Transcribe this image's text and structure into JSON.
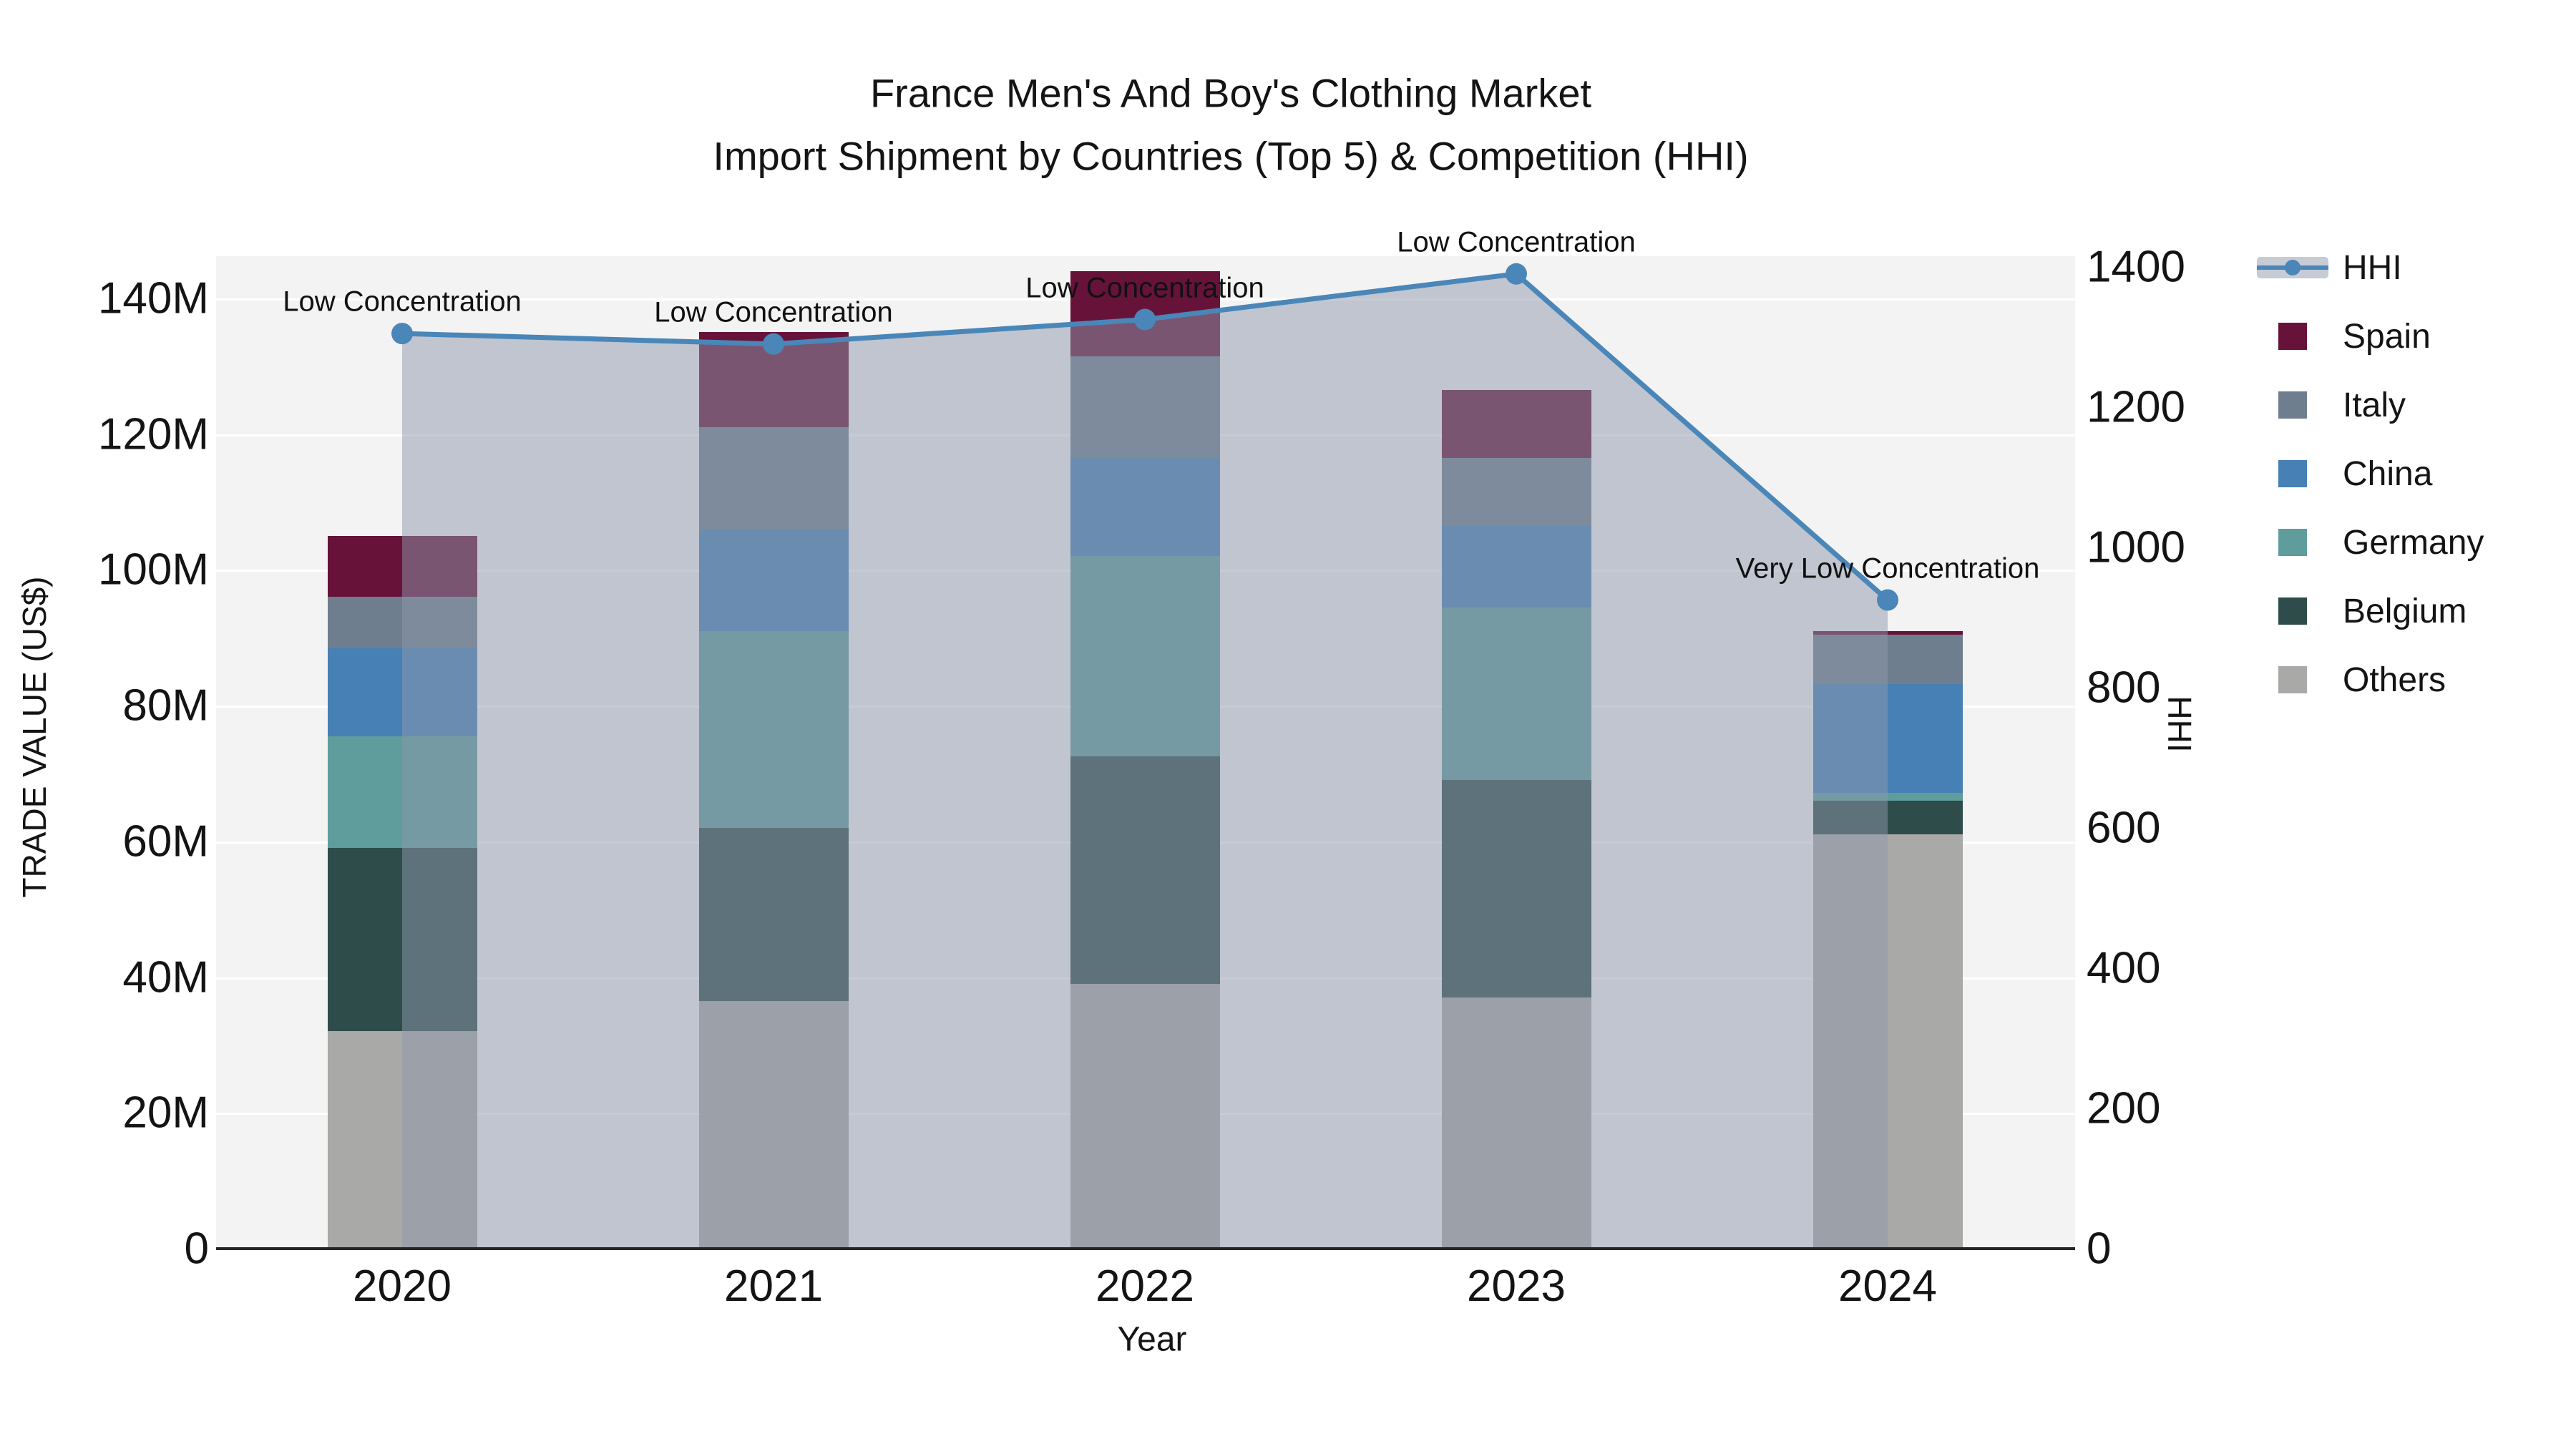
{
  "title": {
    "line1": "France Men's And Boy's Clothing Market",
    "line2": "Import Shipment by Countries (Top 5) & Competition (HHI)"
  },
  "axes": {
    "y_left": {
      "label": "TRADE VALUE (US$)",
      "ticks": [
        "0",
        "20M",
        "40M",
        "60M",
        "80M",
        "100M",
        "120M",
        "140M"
      ]
    },
    "y_right": {
      "label": "HHI",
      "ticks": [
        "0",
        "200",
        "400",
        "600",
        "800",
        "1000",
        "1200",
        "1400"
      ]
    },
    "x": {
      "label": "Year",
      "ticks": [
        "2020",
        "2021",
        "2022",
        "2023",
        "2024"
      ]
    }
  },
  "legend": [
    {
      "label": "HHI",
      "type": "line",
      "color": "#4a86b8"
    },
    {
      "label": "Spain",
      "type": "square",
      "color": "#671339"
    },
    {
      "label": "Italy",
      "type": "square",
      "color": "#6f7e8e"
    },
    {
      "label": "China",
      "type": "square",
      "color": "#4680b4"
    },
    {
      "label": "Germany",
      "type": "square",
      "color": "#5f9c9c"
    },
    {
      "label": "Belgium",
      "type": "square",
      "color": "#2d4c4a"
    },
    {
      "label": "Others",
      "type": "square",
      "color": "#a9a9a7"
    }
  ],
  "chart_data": {
    "type": "combo (stacked bar + line with area fill)",
    "categories": [
      "2020",
      "2021",
      "2022",
      "2023",
      "2024"
    ],
    "bar_value_unit": "trade value, millions US$",
    "bar_stack_order_bottom_to_top": [
      "Others",
      "Belgium",
      "Germany",
      "China",
      "Italy",
      "Spain"
    ],
    "series": [
      {
        "name": "Others",
        "color": "#a9a9a7",
        "values": [
          32,
          36.5,
          39,
          37,
          61
        ]
      },
      {
        "name": "Belgium",
        "color": "#2d4c4a",
        "values": [
          27,
          25.5,
          33.5,
          32,
          5
        ]
      },
      {
        "name": "Germany",
        "color": "#5f9c9c",
        "values": [
          16.5,
          29,
          29.5,
          25.5,
          1.2
        ]
      },
      {
        "name": "China",
        "color": "#4680b4",
        "values": [
          13,
          15,
          14.5,
          12,
          16
        ]
      },
      {
        "name": "Italy",
        "color": "#6f7e8e",
        "values": [
          7.5,
          15,
          15,
          10,
          7.3
        ]
      },
      {
        "name": "Spain",
        "color": "#671339",
        "values": [
          9,
          14,
          12.5,
          10,
          0.5
        ]
      }
    ],
    "bar_totals": [
      105,
      135,
      144,
      126.5,
      91
    ],
    "line_series": {
      "name": "HHI",
      "color": "#4a86b8",
      "area_fill": "rgba(141,152,171,0.5)",
      "values": [
        1305,
        1290,
        1325,
        1390,
        925
      ]
    },
    "annotations": [
      {
        "category": "2020",
        "text": "Low Concentration"
      },
      {
        "category": "2021",
        "text": "Low Concentration"
      },
      {
        "category": "2022",
        "text": "Low Concentration"
      },
      {
        "category": "2023",
        "text": "Low Concentration"
      },
      {
        "category": "2024",
        "text": "Very Low Concentration"
      }
    ],
    "title": "France Men's And Boy's Clothing Market — Import Shipment by Countries (Top 5) & Competition (HHI)",
    "xlabel": "Year",
    "ylabel_left": "TRADE VALUE (US$)",
    "ylabel_right": "HHI",
    "ylim_left_millions": [
      0,
      140
    ],
    "ylim_right": [
      0,
      1400
    ],
    "grid": "horizontal, at left-axis ticks",
    "legend_position": "outside right, top"
  }
}
